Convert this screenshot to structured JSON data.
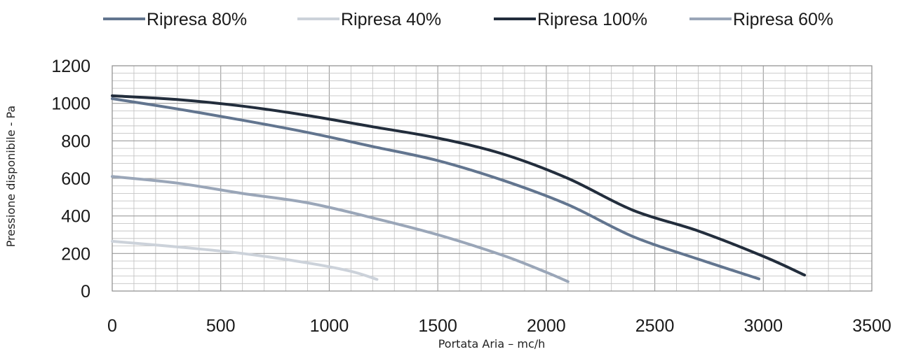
{
  "chart_data": {
    "type": "line",
    "xlabel": "Portata Aria – mc/h",
    "ylabel": "Pressione disponibile - Pa",
    "xlim": [
      0,
      3500
    ],
    "ylim": [
      0,
      1200
    ],
    "x_ticks": [
      "0",
      "500",
      "1000",
      "1500",
      "2000",
      "2500",
      "3000",
      "3500"
    ],
    "y_ticks": [
      "0",
      "200",
      "400",
      "600",
      "800",
      "1000",
      "1200"
    ],
    "grid": true,
    "legend_position": "top",
    "series": [
      {
        "name": "Ripresa 80%",
        "color": "#62758f",
        "points": [
          [
            0,
            1025
          ],
          [
            300,
            970
          ],
          [
            600,
            910
          ],
          [
            900,
            845
          ],
          [
            1200,
            770
          ],
          [
            1500,
            695
          ],
          [
            1800,
            590
          ],
          [
            2100,
            460
          ],
          [
            2400,
            290
          ],
          [
            2700,
            170
          ],
          [
            2980,
            65
          ]
        ]
      },
      {
        "name": "Ripresa 40%",
        "color": "#ccd2da",
        "points": [
          [
            0,
            265
          ],
          [
            300,
            235
          ],
          [
            600,
            200
          ],
          [
            900,
            150
          ],
          [
            1100,
            105
          ],
          [
            1220,
            62
          ]
        ]
      },
      {
        "name": "Ripresa 100%",
        "color": "#222d3c",
        "points": [
          [
            0,
            1040
          ],
          [
            300,
            1020
          ],
          [
            600,
            985
          ],
          [
            900,
            935
          ],
          [
            1200,
            875
          ],
          [
            1500,
            815
          ],
          [
            1800,
            730
          ],
          [
            2100,
            600
          ],
          [
            2400,
            430
          ],
          [
            2700,
            320
          ],
          [
            3000,
            185
          ],
          [
            3190,
            85
          ]
        ]
      },
      {
        "name": "Ripresa 60%",
        "color": "#9aa6b8",
        "points": [
          [
            0,
            610
          ],
          [
            300,
            575
          ],
          [
            600,
            520
          ],
          [
            900,
            470
          ],
          [
            1200,
            390
          ],
          [
            1500,
            300
          ],
          [
            1800,
            190
          ],
          [
            2000,
            100
          ],
          [
            2100,
            50
          ]
        ]
      }
    ]
  }
}
